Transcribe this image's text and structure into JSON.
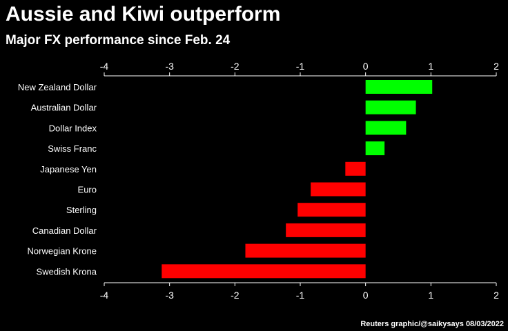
{
  "title": "Aussie and Kiwi outperform",
  "subtitle": "Major FX performance since Feb. 24",
  "credit": "Reuters graphic/@saikysays 08/03/2022",
  "colors": {
    "positive": "#00ff00",
    "negative": "#ff0000",
    "background": "#000000",
    "axis": "#ffffff"
  },
  "chart_data": {
    "type": "bar",
    "orientation": "horizontal",
    "title": "Aussie and Kiwi outperform",
    "subtitle": "Major FX performance since Feb. 24",
    "xlabel": "",
    "ylabel": "",
    "xlim": [
      -4,
      2
    ],
    "xticks": [
      -4,
      -3,
      -2,
      -1,
      0,
      1,
      2
    ],
    "tick_labels": [
      "-4",
      "-3",
      "-2",
      "-1",
      "0",
      "1",
      "2"
    ],
    "axes_ticks_position": "top and bottom",
    "grid": false,
    "categories": [
      "New Zealand Dollar",
      "Australian Dollar",
      "Dollar Index",
      "Swiss Franc",
      "Japanese Yen",
      "Euro",
      "Sterling",
      "Canadian Dollar",
      "Norwegian Krone",
      "Swedish Krona"
    ],
    "values": [
      1.02,
      0.77,
      0.62,
      0.29,
      -0.31,
      -0.84,
      -1.04,
      -1.22,
      -1.84,
      -3.12
    ]
  }
}
